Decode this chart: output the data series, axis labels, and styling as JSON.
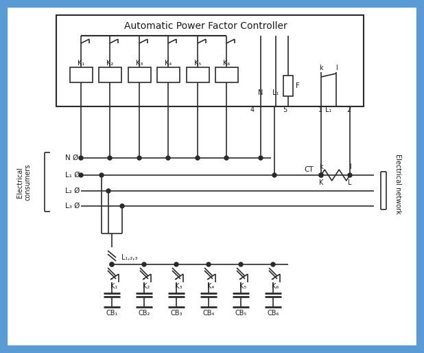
{
  "title": "Automatic Power Factor Controller",
  "bg_outer": "#5b9bd5",
  "bg_inner": "#f5f8fc",
  "line_color": "#2a2a2a",
  "text_color": "#1a1a1a",
  "fig_width": 6.18,
  "fig_height": 5.14,
  "dpi": 100,
  "relay_labels": [
    "K₁",
    "K₂",
    "K₃",
    "K₄",
    "K₅",
    "K₆"
  ],
  "cb_labels": [
    "CB₁",
    "CB₂",
    "CB₃",
    "CB₄",
    "CB₅",
    "CB₆"
  ],
  "ec_label": "Electrical\nconsumers",
  "en_label": "Electrical network"
}
